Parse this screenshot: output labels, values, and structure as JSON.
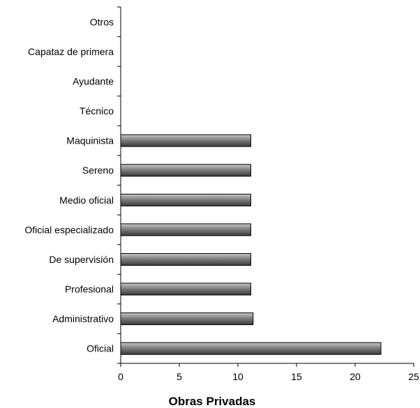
{
  "chart_data": {
    "type": "bar",
    "orientation": "horizontal",
    "categories": [
      "Otros",
      "Capataz de primera",
      "Ayudante",
      "Técnico",
      "Maquinista",
      "Sereno",
      "Medio oficial",
      "Oficial especializado",
      "De supervisión",
      "Profesional",
      "Administrativo",
      "Oficial"
    ],
    "values": [
      0,
      0,
      0,
      0,
      11.1,
      11.1,
      11.1,
      11.1,
      11.1,
      11.1,
      11.3,
      22.2
    ],
    "title": "",
    "xlabel": "Obras Privadas",
    "ylabel": "",
    "xlim": [
      0,
      25
    ],
    "xticks": [
      "0",
      "5",
      "10",
      "15",
      "20",
      "25"
    ],
    "grid": false,
    "legend": "none",
    "bar_color": "#7f7f7f",
    "bar_edge_color": "#000000"
  }
}
